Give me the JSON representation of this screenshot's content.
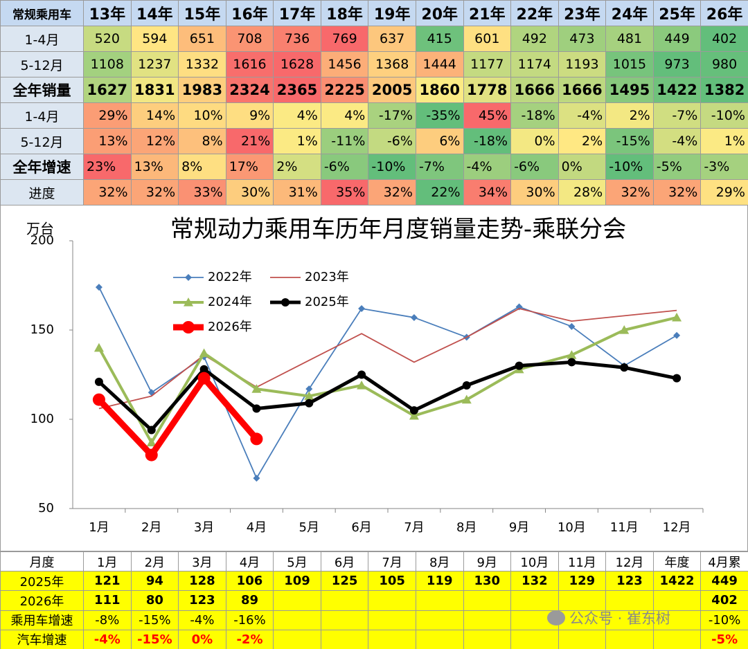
{
  "top_table": {
    "header": [
      "常规乘用车",
      "13年",
      "14年",
      "15年",
      "16年",
      "17年",
      "18年",
      "19年",
      "20年",
      "21年",
      "22年",
      "23年",
      "24年",
      "25年",
      "26年"
    ],
    "rows": [
      [
        "1-4月",
        "520",
        "594",
        "651",
        "708",
        "736",
        "769",
        "637",
        "415",
        "601",
        "492",
        "473",
        "481",
        "449",
        "402"
      ],
      [
        "5-12月",
        "1108",
        "1237",
        "1332",
        "1616",
        "1628",
        "1456",
        "1368",
        "1444",
        "1177",
        "1174",
        "1193",
        "1015",
        "973",
        "980"
      ],
      [
        "全年销量",
        "1627",
        "1831",
        "1983",
        "2324",
        "2365",
        "2225",
        "2005",
        "1860",
        "1778",
        "1666",
        "1666",
        "1495",
        "1422",
        "1382"
      ],
      [
        "1-4月",
        "29%",
        "14%",
        "10%",
        "9%",
        "4%",
        "4%",
        "-17%",
        "-35%",
        "45%",
        "-18%",
        "-4%",
        "2%",
        "-7%",
        "-10%"
      ],
      [
        "5-12月",
        "13%",
        "12%",
        "8%",
        "21%",
        "1%",
        "-11%",
        "-6%",
        "6%",
        "-18%",
        "0%",
        "2%",
        "-15%",
        "-4%",
        "1%"
      ],
      [
        "全年增速",
        "23%",
        "13%",
        "8%",
        "17%",
        "2%",
        "-6%",
        "-10%",
        "-7%",
        "-4%",
        "-6%",
        "0%",
        "-10%",
        "-5%",
        "-3%"
      ],
      [
        "进度",
        "32%",
        "32%",
        "33%",
        "30%",
        "31%",
        "35%",
        "32%",
        "22%",
        "34%",
        "30%",
        "28%",
        "32%",
        "32%",
        "29%"
      ]
    ]
  },
  "chart_data": {
    "type": "line",
    "title": "常规动力乘用车历年月度销量走势-乘联分会",
    "y_label": "万台",
    "categories": [
      "1月",
      "2月",
      "3月",
      "4月",
      "5月",
      "6月",
      "7月",
      "8月",
      "9月",
      "10月",
      "11月",
      "12月"
    ],
    "ylim": [
      50,
      200
    ],
    "yticks": [
      50,
      100,
      150,
      200
    ],
    "grid": false,
    "series": [
      {
        "name": "2022年",
        "color": "#4a7ebb",
        "marker": "diamond",
        "values": [
          174,
          115,
          135,
          67,
          117,
          162,
          157,
          146,
          163,
          152,
          130,
          147
        ]
      },
      {
        "name": "2023年",
        "color": "#c0504d",
        "marker": "none",
        "values": [
          106,
          113,
          136,
          118,
          133,
          148,
          132,
          146,
          162,
          155,
          158,
          161
        ]
      },
      {
        "name": "2024年",
        "color": "#9bbb59",
        "marker": "triangle",
        "values": [
          140,
          87,
          137,
          117,
          113,
          119,
          102,
          111,
          128,
          136,
          150,
          157
        ]
      },
      {
        "name": "2025年",
        "color": "#000000",
        "marker": "circle",
        "values": [
          121,
          94,
          128,
          106,
          109,
          125,
          105,
          119,
          130,
          132,
          129,
          123
        ]
      },
      {
        "name": "2026年",
        "color": "#ff0000",
        "marker": "circle",
        "values": [
          111,
          80,
          123,
          89,
          null,
          null,
          null,
          null,
          null,
          null,
          null,
          null
        ]
      }
    ]
  },
  "bottom_table": {
    "header": [
      "月度",
      "1月",
      "2月",
      "3月",
      "4月",
      "5月",
      "6月",
      "7月",
      "8月",
      "9月",
      "10月",
      "11月",
      "12月",
      "年度",
      "4月累"
    ],
    "rows": [
      [
        "2025年",
        "121",
        "94",
        "128",
        "106",
        "109",
        "125",
        "105",
        "119",
        "130",
        "132",
        "129",
        "123",
        "1422",
        "449"
      ],
      [
        "2026年",
        "111",
        "80",
        "123",
        "89",
        null,
        null,
        null,
        null,
        null,
        null,
        null,
        null,
        null,
        "402"
      ],
      [
        "乘用车增速",
        "-8%",
        "-15%",
        "-4%",
        "-16%",
        null,
        null,
        null,
        null,
        null,
        null,
        null,
        null,
        null,
        "-10%"
      ],
      [
        "汽车增速",
        "-4%",
        "-15%",
        "0%",
        "-2%",
        null,
        null,
        null,
        null,
        null,
        null,
        null,
        null,
        null,
        "-5%"
      ]
    ]
  },
  "watermark": "公众号 · 崔东树"
}
